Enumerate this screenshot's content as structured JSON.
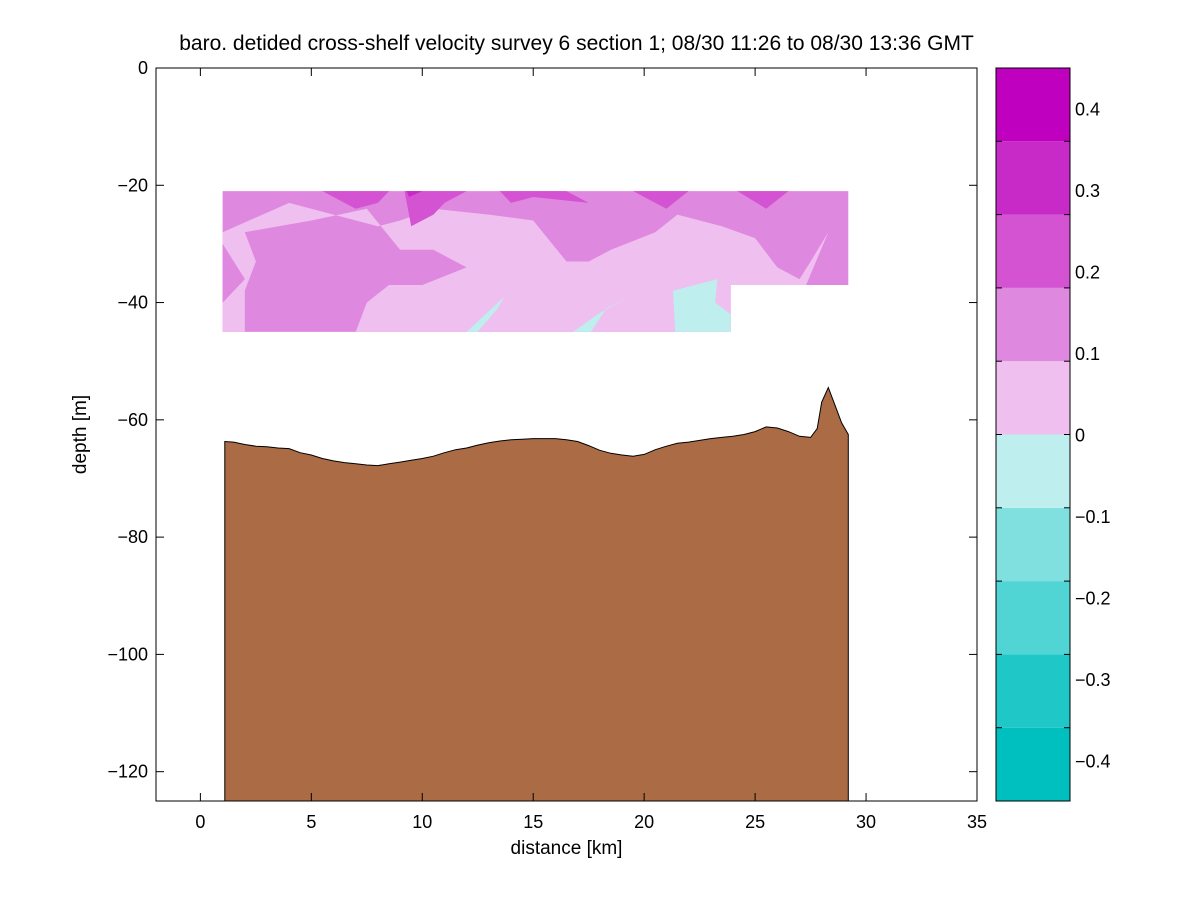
{
  "chart_data": {
    "type": "contour",
    "title": "baro. detided cross-shelf velocity survey 6 section 1; 08/30 11:26 to 08/30 13:36 GMT",
    "xlabel": "distance [km]",
    "ylabel": "depth [m]",
    "xlim": [
      -2,
      35
    ],
    "ylim": [
      -125,
      0
    ],
    "xticks": [
      0,
      5,
      10,
      15,
      20,
      25,
      30,
      35
    ],
    "yticks": [
      0,
      -20,
      -40,
      -60,
      -80,
      -100,
      -120
    ],
    "grid": false,
    "colors": {
      "bottom": "#aa6b45",
      "levels": [
        "#00bfbf",
        "#20c7c7",
        "#50d4d4",
        "#80e0e0",
        "#bfeeee",
        "#efbfef",
        "#df88df",
        "#d353d3",
        "#c72ac7",
        "#bf00bf"
      ]
    },
    "colorbar": {
      "limits": [
        -0.45,
        0.45
      ],
      "level_edges": [
        -0.45,
        -0.36,
        -0.27,
        -0.18,
        -0.09,
        0,
        0.09,
        0.18,
        0.27,
        0.36,
        0.45
      ],
      "ticks": [
        -0.4,
        -0.3,
        -0.2,
        -0.1,
        0,
        0.1,
        0.2,
        0.3,
        0.4
      ],
      "tick_labels": [
        "−0.4",
        "−0.3",
        "−0.2",
        "−0.1",
        "0",
        "0.1",
        "0.2",
        "0.3",
        "0.4"
      ]
    },
    "velocity_field": {
      "base_band": 5,
      "upper_domain": [
        [
          1,
          -21
        ],
        [
          29.2,
          -21
        ],
        [
          29.2,
          -37
        ],
        [
          23.9,
          -37
        ],
        [
          23.9,
          -45
        ],
        [
          1,
          -45
        ]
      ],
      "regions": [
        {
          "band": 6,
          "points": [
            [
              1,
              -21
            ],
            [
              29.2,
              -21
            ],
            [
              29.2,
              -37
            ],
            [
              23.9,
              -37
            ],
            [
              23.9,
              -45
            ],
            [
              1,
              -45
            ]
          ]
        },
        {
          "band": 5,
          "points": [
            [
              1,
              -28
            ],
            [
              4,
              -23
            ],
            [
              6,
              -25
            ],
            [
              8,
              -27
            ],
            [
              9,
              -26
            ],
            [
              10.5,
              -24
            ],
            [
              13,
              -25
            ],
            [
              15,
              -26
            ],
            [
              16.5,
              -33
            ],
            [
              17.5,
              -33
            ],
            [
              18.5,
              -31
            ],
            [
              20.5,
              -28
            ],
            [
              21.5,
              -25
            ],
            [
              23.5,
              -27
            ],
            [
              25,
              -29
            ],
            [
              26,
              -34
            ],
            [
              27,
              -36
            ],
            [
              27.5,
              -33
            ],
            [
              28.3,
              -28
            ],
            [
              27.3,
              -37
            ],
            [
              23.9,
              -37
            ],
            [
              23.9,
              -45
            ],
            [
              7,
              -45
            ],
            [
              7.5,
              -40
            ],
            [
              8.5,
              -37
            ],
            [
              10,
              -37
            ],
            [
              12,
              -34
            ],
            [
              10.5,
              -31
            ],
            [
              9,
              -31
            ],
            [
              7.5,
              -24
            ],
            [
              5,
              -26
            ],
            [
              2,
              -28
            ],
            [
              2.5,
              -33
            ],
            [
              2,
              -38
            ],
            [
              2,
              -45
            ],
            [
              1.5,
              -45
            ],
            [
              1,
              -45
            ],
            [
              1,
              -40
            ],
            [
              2,
              -36
            ],
            [
              1.5,
              -33
            ],
            [
              1,
              -30
            ]
          ]
        },
        {
          "band": 6,
          "points": [
            [
              1,
              -40
            ],
            [
              2,
              -36
            ],
            [
              1.5,
              -33
            ],
            [
              1,
              -30
            ],
            [
              1,
              -28
            ]
          ]
        },
        {
          "band": 4,
          "points": [
            [
              12.5,
              -45
            ],
            [
              13.4,
              -41
            ],
            [
              14.6,
              -33
            ],
            [
              13.7,
              -39
            ],
            [
              12,
              -45
            ]
          ]
        },
        {
          "band": 4,
          "points": [
            [
              17.6,
              -45
            ],
            [
              18.3,
              -41
            ],
            [
              19.3,
              -39
            ],
            [
              17.9,
              -42
            ],
            [
              16.8,
              -45
            ]
          ]
        },
        {
          "band": 4,
          "points": [
            [
              21.4,
              -45
            ],
            [
              21.3,
              -38
            ],
            [
              23.3,
              -36
            ],
            [
              23.2,
              -40
            ],
            [
              23.9,
              -42
            ],
            [
              23.9,
              -45
            ]
          ]
        },
        {
          "band": 7,
          "points": [
            [
              5.5,
              -21
            ],
            [
              7,
              -24
            ],
            [
              8,
              -23
            ],
            [
              8.5,
              -21
            ]
          ]
        },
        {
          "band": 7,
          "points": [
            [
              9.2,
              -21
            ],
            [
              9.5,
              -27
            ],
            [
              10.5,
              -25
            ],
            [
              11,
              -23
            ],
            [
              12,
              -21
            ]
          ]
        },
        {
          "band": 7,
          "points": [
            [
              13.5,
              -21
            ],
            [
              14,
              -23
            ],
            [
              15,
              -22
            ],
            [
              17.5,
              -23
            ],
            [
              16.5,
              -21
            ]
          ]
        },
        {
          "band": 7,
          "points": [
            [
              19.5,
              -21
            ],
            [
              21,
              -24
            ],
            [
              22,
              -21
            ]
          ]
        },
        {
          "band": 7,
          "points": [
            [
              24.2,
              -21
            ],
            [
              25.5,
              -24
            ],
            [
              26.5,
              -21
            ]
          ]
        },
        {
          "band": 8,
          "points": [
            [
              9.3,
              -21
            ],
            [
              9.4,
              -22
            ],
            [
              10,
              -21
            ]
          ]
        }
      ]
    },
    "bottom_profile": {
      "x": [
        1.1,
        1.5,
        2.0,
        2.5,
        3.0,
        3.5,
        4.0,
        4.5,
        5.0,
        5.5,
        6.0,
        6.5,
        7.0,
        7.5,
        8.0,
        8.5,
        9.0,
        9.5,
        10.0,
        10.5,
        11.0,
        11.5,
        12.0,
        12.5,
        13.0,
        13.5,
        14.0,
        14.5,
        15.0,
        15.5,
        16.0,
        16.5,
        17.0,
        17.5,
        18.0,
        18.5,
        19.0,
        19.5,
        20.0,
        20.5,
        21.0,
        21.5,
        22.0,
        22.5,
        23.0,
        23.5,
        24.0,
        24.5,
        25.0,
        25.5,
        26.0,
        26.5,
        27.0,
        27.5,
        27.8,
        28.0,
        28.3,
        28.6,
        28.9,
        29.2
      ],
      "depth": [
        -63.7,
        -63.8,
        -64.2,
        -64.5,
        -64.6,
        -64.8,
        -64.9,
        -65.6,
        -66.0,
        -66.6,
        -67.0,
        -67.3,
        -67.5,
        -67.7,
        -67.8,
        -67.5,
        -67.2,
        -66.9,
        -66.6,
        -66.2,
        -65.6,
        -65.1,
        -64.8,
        -64.3,
        -63.9,
        -63.6,
        -63.4,
        -63.3,
        -63.2,
        -63.2,
        -63.2,
        -63.4,
        -63.7,
        -64.4,
        -65.2,
        -65.7,
        -66.0,
        -66.2,
        -65.9,
        -65.1,
        -64.5,
        -64.0,
        -63.8,
        -63.5,
        -63.2,
        -63.0,
        -62.8,
        -62.5,
        -62.0,
        -61.2,
        -61.4,
        -62.0,
        -62.8,
        -63.0,
        -61.5,
        -57.0,
        -54.5,
        -57.5,
        -60.5,
        -62.5
      ]
    }
  }
}
